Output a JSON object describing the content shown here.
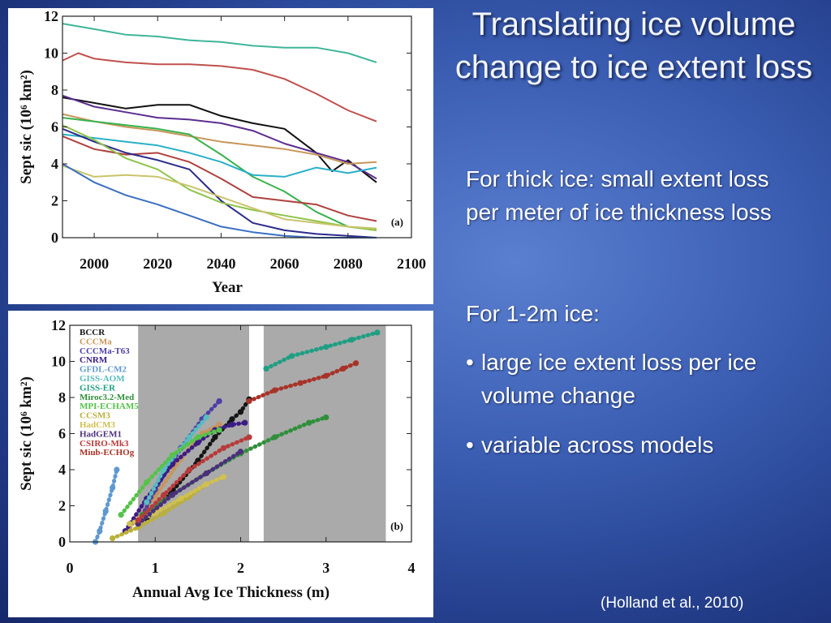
{
  "slide": {
    "title": "Translating ice volume change to ice extent loss",
    "para1": "For thick ice: small extent loss per meter of ice thickness loss",
    "para2": "For 1-2m ice:",
    "bullets": [
      "large ice extent loss per ice volume change",
      "variable across models"
    ],
    "bullet_char": "•",
    "citation": "(Holland et al., 2010)"
  },
  "chart_data": [
    {
      "type": "line",
      "panel_label": "(a)",
      "title": "",
      "xlabel": "Year",
      "ylabel": "Sept sic (10⁶ km²)",
      "xlim": [
        1990,
        2100
      ],
      "ylim": [
        0,
        12
      ],
      "xticks": [
        2000,
        2020,
        2040,
        2060,
        2080,
        2100
      ],
      "yticks": [
        0,
        2,
        4,
        6,
        8,
        10,
        12
      ],
      "series": [
        {
          "name": "teal-high",
          "color": "#3fb59a",
          "x": [
            1990,
            2000,
            2010,
            2020,
            2030,
            2040,
            2050,
            2060,
            2070,
            2080,
            2089
          ],
          "y": [
            11.6,
            11.3,
            11.0,
            10.9,
            10.7,
            10.6,
            10.4,
            10.3,
            10.3,
            10.0,
            9.5
          ]
        },
        {
          "name": "red-high",
          "color": "#c0504d",
          "x": [
            1990,
            1995,
            2000,
            2010,
            2020,
            2030,
            2040,
            2050,
            2060,
            2070,
            2080,
            2089
          ],
          "y": [
            9.6,
            10.0,
            9.7,
            9.5,
            9.4,
            9.4,
            9.3,
            9.1,
            8.6,
            7.8,
            6.9,
            6.3
          ]
        },
        {
          "name": "black",
          "color": "#111111",
          "x": [
            1990,
            2000,
            2010,
            2020,
            2030,
            2040,
            2050,
            2060,
            2070,
            2075,
            2080,
            2089
          ],
          "y": [
            7.6,
            7.3,
            7.0,
            7.2,
            7.2,
            6.6,
            6.2,
            5.9,
            4.6,
            3.6,
            4.2,
            3.0
          ]
        },
        {
          "name": "purple",
          "color": "#5b2d90",
          "x": [
            1990,
            2000,
            2010,
            2020,
            2030,
            2040,
            2050,
            2060,
            2070,
            2080,
            2089
          ],
          "y": [
            7.7,
            7.1,
            6.8,
            6.5,
            6.4,
            6.2,
            5.8,
            5.1,
            4.6,
            4.1,
            3.2
          ]
        },
        {
          "name": "tan",
          "color": "#c7965a",
          "x": [
            1990,
            2000,
            2010,
            2020,
            2030,
            2040,
            2050,
            2060,
            2070,
            2080,
            2089
          ],
          "y": [
            6.7,
            6.3,
            6.0,
            5.8,
            5.5,
            5.2,
            5.0,
            4.8,
            4.5,
            4.0,
            4.1
          ]
        },
        {
          "name": "green",
          "color": "#37b24d",
          "x": [
            1990,
            2000,
            2010,
            2020,
            2030,
            2040,
            2050,
            2060,
            2070,
            2080,
            2089
          ],
          "y": [
            6.5,
            6.3,
            6.1,
            5.9,
            5.6,
            4.5,
            3.3,
            2.5,
            1.4,
            0.6,
            0.4
          ]
        },
        {
          "name": "cyan",
          "color": "#2ab0c8",
          "x": [
            1990,
            2000,
            2010,
            2020,
            2030,
            2040,
            2050,
            2060,
            2070,
            2080,
            2089
          ],
          "y": [
            5.6,
            5.4,
            5.2,
            5.0,
            4.6,
            4.1,
            3.4,
            3.3,
            3.8,
            3.5,
            3.8
          ]
        },
        {
          "name": "dark-red",
          "color": "#b0413e",
          "x": [
            1990,
            2000,
            2010,
            2020,
            2030,
            2040,
            2050,
            2060,
            2070,
            2080,
            2089
          ],
          "y": [
            5.5,
            4.8,
            4.5,
            4.6,
            4.1,
            3.2,
            2.2,
            2.0,
            1.8,
            1.2,
            0.9
          ]
        },
        {
          "name": "navy",
          "color": "#2b2b8c",
          "x": [
            1990,
            2000,
            2010,
            2020,
            2030,
            2040,
            2050,
            2060,
            2070,
            2080,
            2089
          ],
          "y": [
            5.9,
            5.2,
            4.6,
            4.2,
            3.7,
            2.0,
            0.8,
            0.4,
            0.2,
            0.1,
            0.0
          ]
        },
        {
          "name": "lime",
          "color": "#8ec44a",
          "x": [
            1990,
            2000,
            2010,
            2020,
            2030,
            2040,
            2050,
            2060,
            2070,
            2080,
            2089
          ],
          "y": [
            6.1,
            5.3,
            4.3,
            3.7,
            2.6,
            1.9,
            1.5,
            1.2,
            0.9,
            0.6,
            0.4
          ]
        },
        {
          "name": "pale-yellow",
          "color": "#c9c46a",
          "x": [
            1990,
            2000,
            2010,
            2020,
            2030,
            2040,
            2050,
            2060,
            2070,
            2080,
            2089
          ],
          "y": [
            3.9,
            3.3,
            3.4,
            3.3,
            2.8,
            2.2,
            1.6,
            1.0,
            0.8,
            0.6,
            0.5
          ]
        },
        {
          "name": "blue",
          "color": "#3a6fc2",
          "x": [
            1990,
            2000,
            2010,
            2020,
            2030,
            2040,
            2050,
            2060,
            2070,
            2080,
            2089
          ],
          "y": [
            4.0,
            3.0,
            2.3,
            1.8,
            1.2,
            0.6,
            0.3,
            0.1,
            0.0,
            0.0,
            0.0
          ]
        }
      ]
    },
    {
      "type": "scatter",
      "panel_label": "(b)",
      "title": "",
      "xlabel": "Annual Avg Ice Thickness (m)",
      "ylabel": "Sept sic (10⁶ km²)",
      "xlim": [
        0,
        4
      ],
      "ylim": [
        0,
        12
      ],
      "xticks": [
        0,
        1,
        2,
        3,
        4
      ],
      "yticks": [
        0,
        2,
        4,
        6,
        8,
        10,
        12
      ],
      "shaded_x_ranges": [
        [
          0.8,
          2.1
        ],
        [
          2.27,
          3.7
        ]
      ],
      "legend": [
        "BCCR",
        "CCCMa",
        "CCCMa-T63",
        "CNRM",
        "GFDL-CM2",
        "GISS-AOM",
        "GISS-ER",
        "Miroc3.2-Med",
        "MPI-ECHAM5",
        "CCSM3",
        "HadCM3",
        "HadGEM1",
        "CSIRO-Mk3",
        "Miub-ECHOg"
      ],
      "series": [
        {
          "name": "BCCR",
          "color": "#151515",
          "x": [
            0.9,
            1.2,
            1.5,
            1.7,
            1.9,
            2.0,
            2.1
          ],
          "y": [
            1.3,
            2.8,
            4.5,
            5.8,
            6.8,
            7.2,
            7.9
          ]
        },
        {
          "name": "CCCMa",
          "color": "#c8955a",
          "x": [
            0.7,
            1.0,
            1.3,
            1.55,
            1.75
          ],
          "y": [
            0.8,
            2.5,
            4.6,
            6.0,
            6.5
          ]
        },
        {
          "name": "CCCMa-T63",
          "color": "#4e3fa6",
          "x": [
            0.8,
            1.0,
            1.3,
            1.55,
            1.75
          ],
          "y": [
            1.0,
            2.9,
            5.2,
            6.8,
            7.8
          ]
        },
        {
          "name": "CNRM",
          "color": "#3c1b84",
          "x": [
            0.65,
            0.9,
            1.2,
            1.5,
            1.7,
            1.9,
            2.05
          ],
          "y": [
            0.6,
            2.4,
            4.3,
            5.5,
            6.2,
            6.5,
            6.6
          ]
        },
        {
          "name": "GFDL-CM2",
          "color": "#5f98d1",
          "x": [
            0.3,
            0.35,
            0.42,
            0.5,
            0.55
          ],
          "y": [
            0.0,
            0.6,
            1.7,
            3.0,
            4.0
          ]
        },
        {
          "name": "GISS-AOM",
          "color": "#57bdbf",
          "x": [
            0.9,
            1.1,
            1.4,
            1.6
          ],
          "y": [
            2.2,
            4.0,
            5.8,
            6.9
          ]
        },
        {
          "name": "GISS-ER",
          "color": "#1f9e83",
          "x": [
            2.3,
            2.6,
            3.0,
            3.3,
            3.6
          ],
          "y": [
            9.6,
            10.3,
            10.8,
            11.2,
            11.6
          ]
        },
        {
          "name": "Miroc3.2-Med",
          "color": "#2f8f3a",
          "x": [
            0.85,
            1.2,
            1.6,
            2.0,
            2.4,
            2.8,
            3.0
          ],
          "y": [
            1.5,
            2.6,
            3.8,
            4.9,
            5.8,
            6.6,
            6.9
          ]
        },
        {
          "name": "MPI-ECHAM5",
          "color": "#56c24a",
          "x": [
            0.6,
            0.9,
            1.2,
            1.5,
            1.75
          ],
          "y": [
            1.5,
            3.3,
            4.8,
            5.8,
            6.2
          ]
        },
        {
          "name": "CCSM3",
          "color": "#bab03a",
          "x": [
            0.5,
            0.8,
            1.1,
            1.4,
            1.6
          ],
          "y": [
            0.2,
            0.8,
            1.6,
            2.5,
            3.2
          ]
        },
        {
          "name": "HadCM3",
          "color": "#d0c050",
          "x": [
            0.7,
            1.0,
            1.3,
            1.6,
            1.8
          ],
          "y": [
            1.0,
            1.6,
            2.4,
            3.2,
            3.6
          ]
        },
        {
          "name": "HadGEM1",
          "color": "#4b2f7a",
          "x": [
            0.8,
            1.2,
            1.6,
            2.0
          ],
          "y": [
            1.0,
            2.6,
            3.8,
            5.0
          ]
        },
        {
          "name": "CSIRO-Mk3",
          "color": "#b83a3a",
          "x": [
            0.8,
            1.1,
            1.4,
            1.8,
            2.1
          ],
          "y": [
            1.2,
            2.6,
            4.0,
            5.2,
            5.8
          ]
        },
        {
          "name": "Miub-ECHOg",
          "color": "#a83328",
          "x": [
            2.1,
            2.4,
            2.7,
            3.0,
            3.2,
            3.35
          ],
          "y": [
            7.8,
            8.4,
            8.8,
            9.2,
            9.6,
            9.9
          ]
        }
      ]
    }
  ]
}
